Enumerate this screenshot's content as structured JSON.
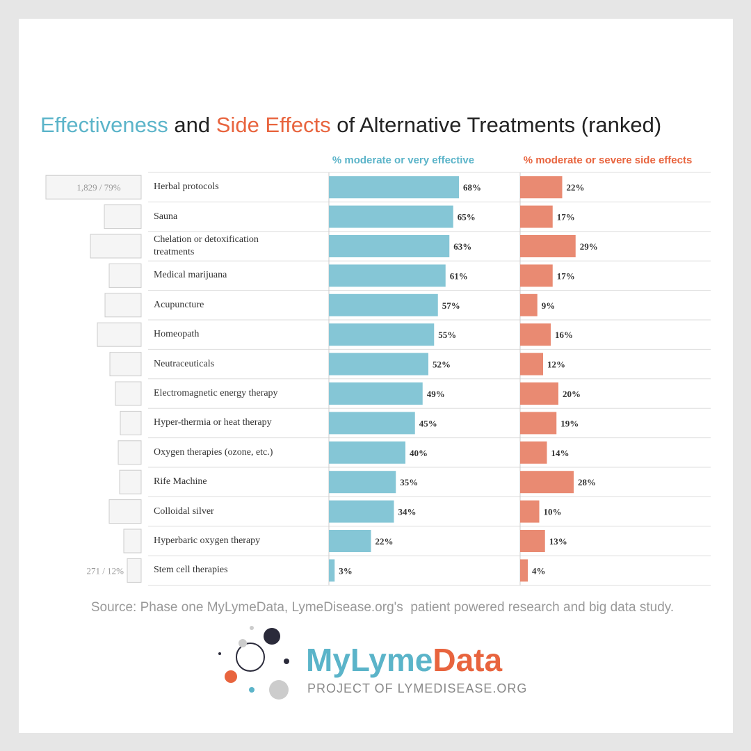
{
  "chart_data": {
    "type": "bar",
    "title_parts": [
      "Effectiveness",
      " and ",
      "Side Effects",
      " of Alternative Treatments (ranked)"
    ],
    "categories": [
      "Herbal protocols",
      "Sauna",
      "Chelation or detoxification treatments",
      "Medical marijuana",
      "Acupuncture",
      "Homeopath",
      "Neutraceuticals",
      "Electromagnetic energy therapy",
      "Hyper-thermia or heat therapy",
      "Oxygen therapies (ozone, etc.)",
      "Rife Machine",
      "Colloidal silver",
      "Hyperbaric oxygen therapy",
      "Stem cell therapies"
    ],
    "left_labels": [
      "1,829 / 79%",
      null,
      null,
      null,
      null,
      null,
      null,
      null,
      null,
      null,
      null,
      null,
      null,
      "271 / 12%"
    ],
    "series": [
      {
        "name": "% moderate or very effective",
        "color": "#85c6d6",
        "values": [
          68,
          65,
          63,
          61,
          57,
          55,
          52,
          49,
          45,
          40,
          35,
          34,
          22,
          3
        ],
        "value_labels": [
          "68%",
          "65%",
          "63%",
          "61%",
          "57%",
          "55%",
          "52%",
          "49%",
          "45%",
          "40%",
          "35%",
          "34%",
          "22%",
          "3%"
        ]
      },
      {
        "name": "% moderate or severe side effects",
        "color": "#e98a72",
        "values": [
          22,
          17,
          29,
          17,
          9,
          16,
          12,
          20,
          19,
          14,
          28,
          10,
          13,
          4
        ],
        "value_labels": [
          "22%",
          "17%",
          "29%",
          "17%",
          "9%",
          "16%",
          "12%",
          "20%",
          "19%",
          "14%",
          "28%",
          "10%",
          "13%",
          "4%"
        ]
      }
    ],
    "source": "Source: Phase one MyLymeData, LymeDisease.org's  patient powered research and big data study."
  },
  "logo": {
    "name_parts": [
      "MyLyme",
      "Data"
    ],
    "subtitle": "PROJECT OF LYMEDISEASE.ORG"
  }
}
